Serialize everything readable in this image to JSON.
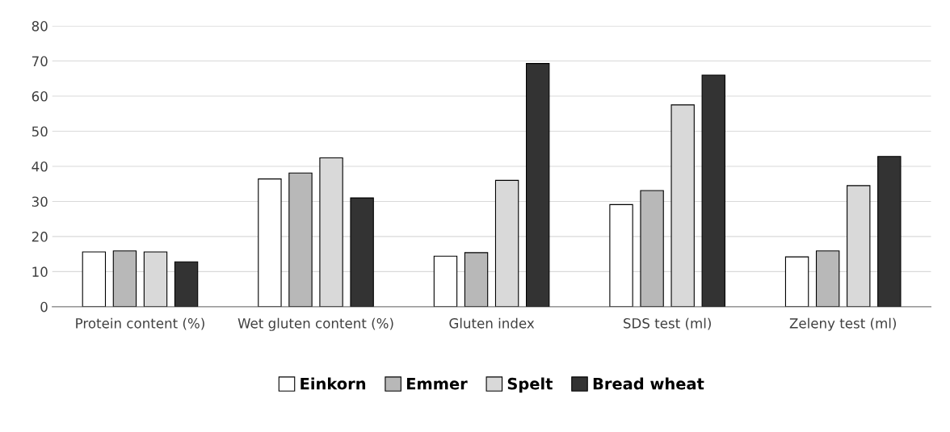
{
  "chart_data": {
    "type": "bar",
    "categories": [
      "Protein content (%)",
      "Wet gluten content (%)",
      "Gluten index",
      "SDS test (ml)",
      "Zeleny test (ml)"
    ],
    "series": [
      {
        "name": "Einkorn",
        "color": "#ffffff",
        "values": [
          15.6,
          36.4,
          14.4,
          29.1,
          14.2
        ]
      },
      {
        "name": "Emmer",
        "color": "#b8b8b8",
        "values": [
          15.9,
          38.1,
          15.4,
          33.1,
          15.9
        ]
      },
      {
        "name": "Spelt",
        "color": "#d9d9d9",
        "values": [
          15.6,
          42.4,
          36.0,
          57.5,
          34.5
        ]
      },
      {
        "name": "Bread wheat",
        "color": "#333333",
        "values": [
          12.8,
          31.0,
          69.3,
          66.0,
          42.8
        ]
      }
    ],
    "ylim": [
      0,
      80
    ],
    "yticks": [
      0,
      10,
      20,
      30,
      40,
      50,
      60,
      70,
      80
    ],
    "grid": "y",
    "legend": "bottom"
  }
}
